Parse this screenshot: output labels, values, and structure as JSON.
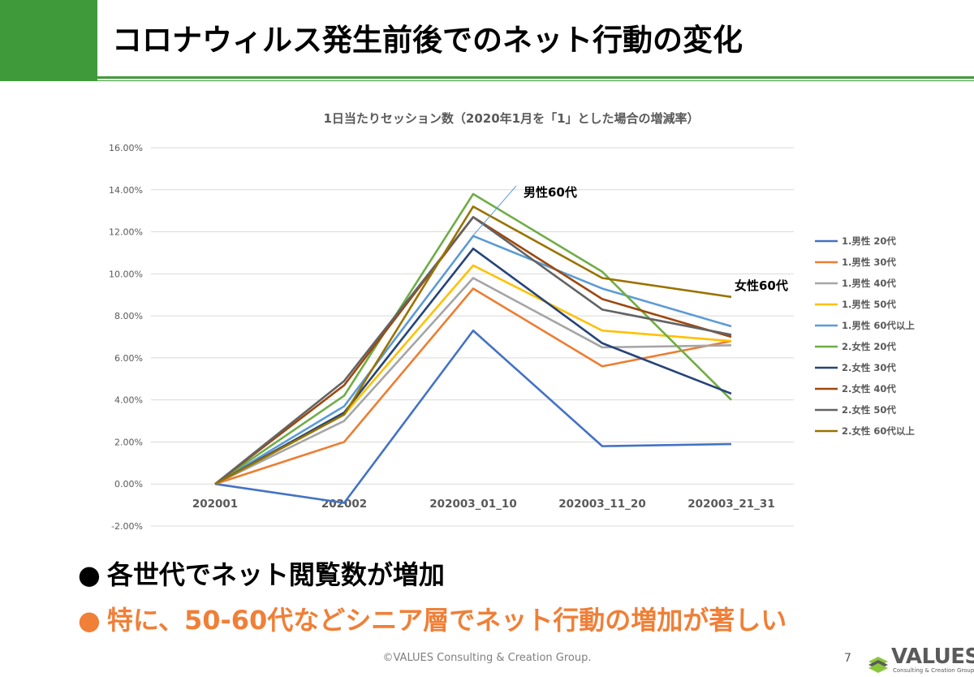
{
  "slide": {
    "title": "コロナウィルス発生前後でのネット行動の変化",
    "accent_color": "#3f9b3a",
    "bullets": [
      {
        "marker": "●",
        "text": "各世代でネット閲覧数が増加",
        "color": "#000000"
      },
      {
        "marker": "●",
        "text": "特に、50-60代などシニア層でネット行動の増加が著しい",
        "color": "#f07f37"
      }
    ],
    "footer": "©VALUES Consulting & Creation Group.",
    "page_number": "7",
    "logo": {
      "name": "VALUES",
      "sub": "Consulting & Creation Group",
      "icon": "stacked-layers-logo-icon"
    }
  },
  "chart_data": {
    "type": "line",
    "title": "1日当たりセッション数（2020年1月を「1」とした場合の増減率）",
    "categories": [
      "202001",
      "202002",
      "202003_01_10",
      "202003_11_20",
      "202003_21_31"
    ],
    "y_ticks": [
      "16.00%",
      "14.00%",
      "12.00%",
      "10.00%",
      "8.00%",
      "6.00%",
      "4.00%",
      "2.00%",
      "0.00%",
      "-2.00%"
    ],
    "ylim": [
      -0.02,
      0.16
    ],
    "grid": true,
    "legend_position": "right",
    "series": [
      {
        "name": "1.男性 20代",
        "color": "#4472c4",
        "values": [
          0.0,
          -0.009,
          0.073,
          0.018,
          0.019
        ]
      },
      {
        "name": "1.男性 30代",
        "color": "#ed7d31",
        "values": [
          0.0,
          0.02,
          0.093,
          0.056,
          0.068
        ]
      },
      {
        "name": "1.男性 40代",
        "color": "#a5a5a5",
        "values": [
          0.0,
          0.03,
          0.098,
          0.065,
          0.066
        ]
      },
      {
        "name": "1.男性 50代",
        "color": "#ffc000",
        "values": [
          0.0,
          0.033,
          0.104,
          0.073,
          0.068
        ]
      },
      {
        "name": "1.男性 60代以上",
        "color": "#5b9bd5",
        "values": [
          0.0,
          0.037,
          0.118,
          0.093,
          0.075
        ]
      },
      {
        "name": "2.女性 20代",
        "color": "#70ad47",
        "values": [
          0.0,
          0.042,
          0.138,
          0.101,
          0.04
        ]
      },
      {
        "name": "2.女性 30代",
        "color": "#264478",
        "values": [
          0.0,
          0.034,
          0.112,
          0.067,
          0.043
        ]
      },
      {
        "name": "2.女性 40代",
        "color": "#9e480e",
        "values": [
          0.0,
          0.047,
          0.127,
          0.088,
          0.07
        ]
      },
      {
        "name": "2.女性 50代",
        "color": "#636363",
        "values": [
          0.0,
          0.049,
          0.127,
          0.083,
          0.071
        ]
      },
      {
        "name": "2.女性 60代以上",
        "color": "#997300",
        "values": [
          0.0,
          0.033,
          0.132,
          0.098,
          0.089
        ]
      }
    ],
    "annotations": [
      {
        "text": "男性60代"
      },
      {
        "text": "女性60代"
      }
    ]
  }
}
